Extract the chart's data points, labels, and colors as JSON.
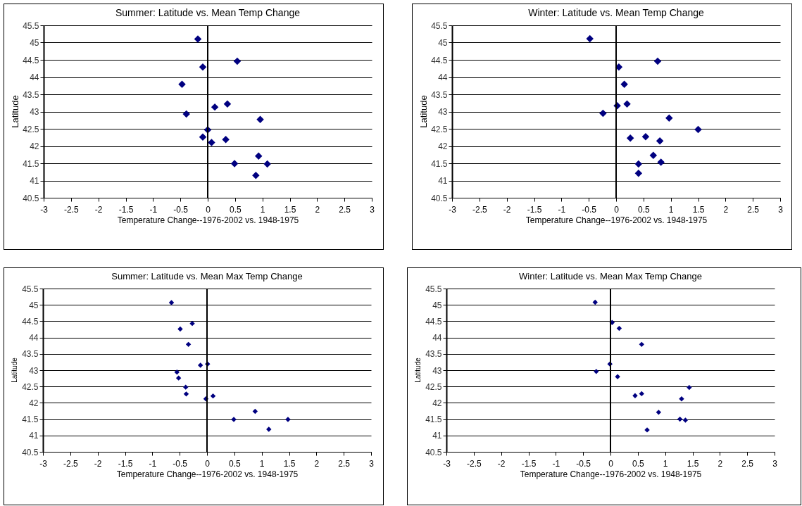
{
  "chart_data": [
    {
      "type": "scatter",
      "title": "Summer: Latitude vs. Mean Temp Change",
      "xlabel": "Temperature Change--1976-2002 vs. 1948-1975",
      "ylabel": "Latitude",
      "color": "#000080",
      "marker": "diamond",
      "grid": "y",
      "xlim": [
        -3,
        3
      ],
      "ylim": [
        40.5,
        45.5
      ],
      "xticks": [
        -3,
        -2.5,
        -2,
        -1.5,
        -1,
        -0.5,
        0,
        0.5,
        1,
        1.5,
        2,
        2.5,
        3
      ],
      "yticks": [
        40.5,
        41,
        41.5,
        42,
        42.5,
        43,
        43.5,
        44,
        44.5,
        45,
        45.5
      ],
      "x": [
        -0.18,
        0.54,
        -0.09,
        -0.47,
        0.36,
        0.13,
        -0.39,
        0.96,
        0,
        -0.09,
        0.07,
        0.33,
        0.93,
        1.09,
        0.49,
        0.88
      ],
      "values": [
        45.1,
        44.46,
        44.29,
        43.79,
        43.22,
        43.13,
        42.93,
        42.77,
        42.47,
        42.26,
        42.1,
        42.19,
        41.71,
        41.48,
        41.49,
        41.15
      ]
    },
    {
      "type": "scatter",
      "title": "Winter: Latitude vs. Mean Temp Change",
      "xlabel": "Temperature Change--1976-2002 vs. 1948-1975",
      "ylabel": "Latitude",
      "color": "#000080",
      "marker": "diamond",
      "grid": "y",
      "xlim": [
        -3,
        3
      ],
      "ylim": [
        40.5,
        45.5
      ],
      "xticks": [
        -3,
        -2.5,
        -2,
        -1.5,
        -1,
        -0.5,
        0,
        0.5,
        1,
        1.5,
        2,
        2.5,
        3
      ],
      "yticks": [
        40.5,
        41,
        41.5,
        42,
        42.5,
        43,
        43.5,
        44,
        44.5,
        45,
        45.5
      ],
      "x": [
        -0.48,
        0.05,
        0.76,
        0.15,
        0.02,
        0.2,
        -0.24,
        0.97,
        1.5,
        0.26,
        0.54,
        0.8,
        0.68,
        0.82,
        0.41,
        0.41
      ],
      "values": [
        45.11,
        44.29,
        44.46,
        43.79,
        43.17,
        43.22,
        42.95,
        42.81,
        42.48,
        42.23,
        42.27,
        42.15,
        41.73,
        41.53,
        41.48,
        41.21
      ]
    },
    {
      "type": "scatter",
      "title": "Summer: Latitude vs. Mean Max Temp Change",
      "xlabel": "Temperature Change--1976-2002 vs. 1948-1975",
      "ylabel": "Latitude",
      "color": "#000080",
      "marker": "diamond",
      "grid": "y",
      "xlim": [
        -3,
        3
      ],
      "ylim": [
        40.5,
        45.5
      ],
      "xticks": [
        -3,
        -2.5,
        -2,
        -1.5,
        -1,
        -0.5,
        0,
        0.5,
        1,
        1.5,
        2,
        2.5,
        3
      ],
      "yticks": [
        40.5,
        41,
        41.5,
        42,
        42.5,
        43,
        43.5,
        44,
        44.5,
        45,
        45.5
      ],
      "x": [
        -0.65,
        -0.49,
        -0.27,
        -0.34,
        -0.12,
        0.01,
        -0.55,
        -0.52,
        -0.39,
        -0.38,
        -0.02,
        0.11,
        0.49,
        0.88,
        1.13,
        1.48
      ],
      "values": [
        45.07,
        44.26,
        44.43,
        43.79,
        43.15,
        43.19,
        42.94,
        42.76,
        42.48,
        42.27,
        42.12,
        42.21,
        41.49,
        41.74,
        41.19,
        41.49
      ]
    },
    {
      "type": "scatter",
      "title": "Winter: Latitude vs. Mean Max Temp Change",
      "xlabel": "Temperature Change--1976-2002 vs. 1948-1975",
      "ylabel": "Latitude",
      "color": "#000080",
      "marker": "diamond",
      "grid": "y",
      "xlim": [
        -3,
        3
      ],
      "ylim": [
        40.5,
        45.5
      ],
      "xticks": [
        -3,
        -2.5,
        -2,
        -1.5,
        -1,
        -0.5,
        0,
        0.5,
        1,
        1.5,
        2,
        2.5,
        3
      ],
      "yticks": [
        40.5,
        41,
        41.5,
        42,
        42.5,
        43,
        43.5,
        44,
        44.5,
        45,
        45.5
      ],
      "x": [
        -0.28,
        0.03,
        0.16,
        0.57,
        -0.01,
        -0.26,
        0.13,
        0.45,
        0.57,
        0.67,
        0.88,
        1.3,
        1.44,
        1.27,
        1.37
      ],
      "values": [
        45.08,
        44.46,
        44.28,
        43.79,
        43.19,
        42.96,
        42.8,
        42.22,
        42.28,
        41.17,
        41.71,
        42.12,
        42.47,
        41.5,
        41.47
      ]
    }
  ]
}
